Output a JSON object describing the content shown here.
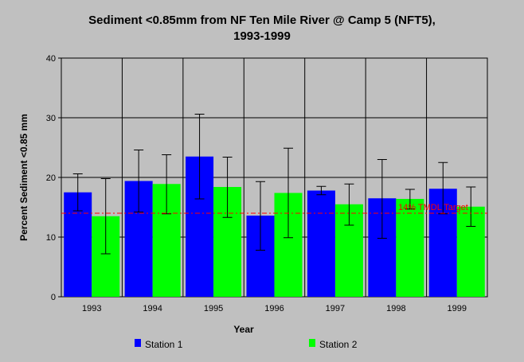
{
  "chart_data": {
    "type": "bar",
    "title": [
      "Sediment <0.85mm from NF Ten Mile River @ Camp 5 (NFT5),",
      "1993-1999"
    ],
    "xlabel": "Year",
    "ylabel": "Percent Sediment <0.85 mm",
    "categories": [
      "1993",
      "1994",
      "1995",
      "1996",
      "1997",
      "1998",
      "1999"
    ],
    "ylim": [
      0,
      40
    ],
    "yticks": [
      "0",
      "10",
      "20",
      "30",
      "40"
    ],
    "grid": true,
    "legend_position": "bottom",
    "series": [
      {
        "name": "Station 1",
        "color": "#0000ff",
        "values": [
          17.5,
          19.4,
          23.5,
          13.6,
          17.8,
          16.5,
          18.1
        ],
        "error_high": [
          20.6,
          24.6,
          30.6,
          19.3,
          18.5,
          23.0,
          22.5
        ],
        "error_low": [
          14.4,
          14.2,
          16.4,
          7.8,
          17.1,
          9.8,
          13.9
        ]
      },
      {
        "name": "Station 2",
        "color": "#00ff00",
        "values": [
          13.5,
          18.9,
          18.4,
          17.4,
          15.5,
          16.4,
          15.1
        ],
        "error_high": [
          19.8,
          23.8,
          23.4,
          24.9,
          18.9,
          18.0,
          18.4
        ],
        "error_low": [
          7.2,
          13.9,
          13.3,
          9.9,
          12.0,
          14.7,
          11.8
        ]
      }
    ],
    "reference_line": {
      "value": 14,
      "label": "14% TMDL Target",
      "color": "#ff0000"
    }
  }
}
